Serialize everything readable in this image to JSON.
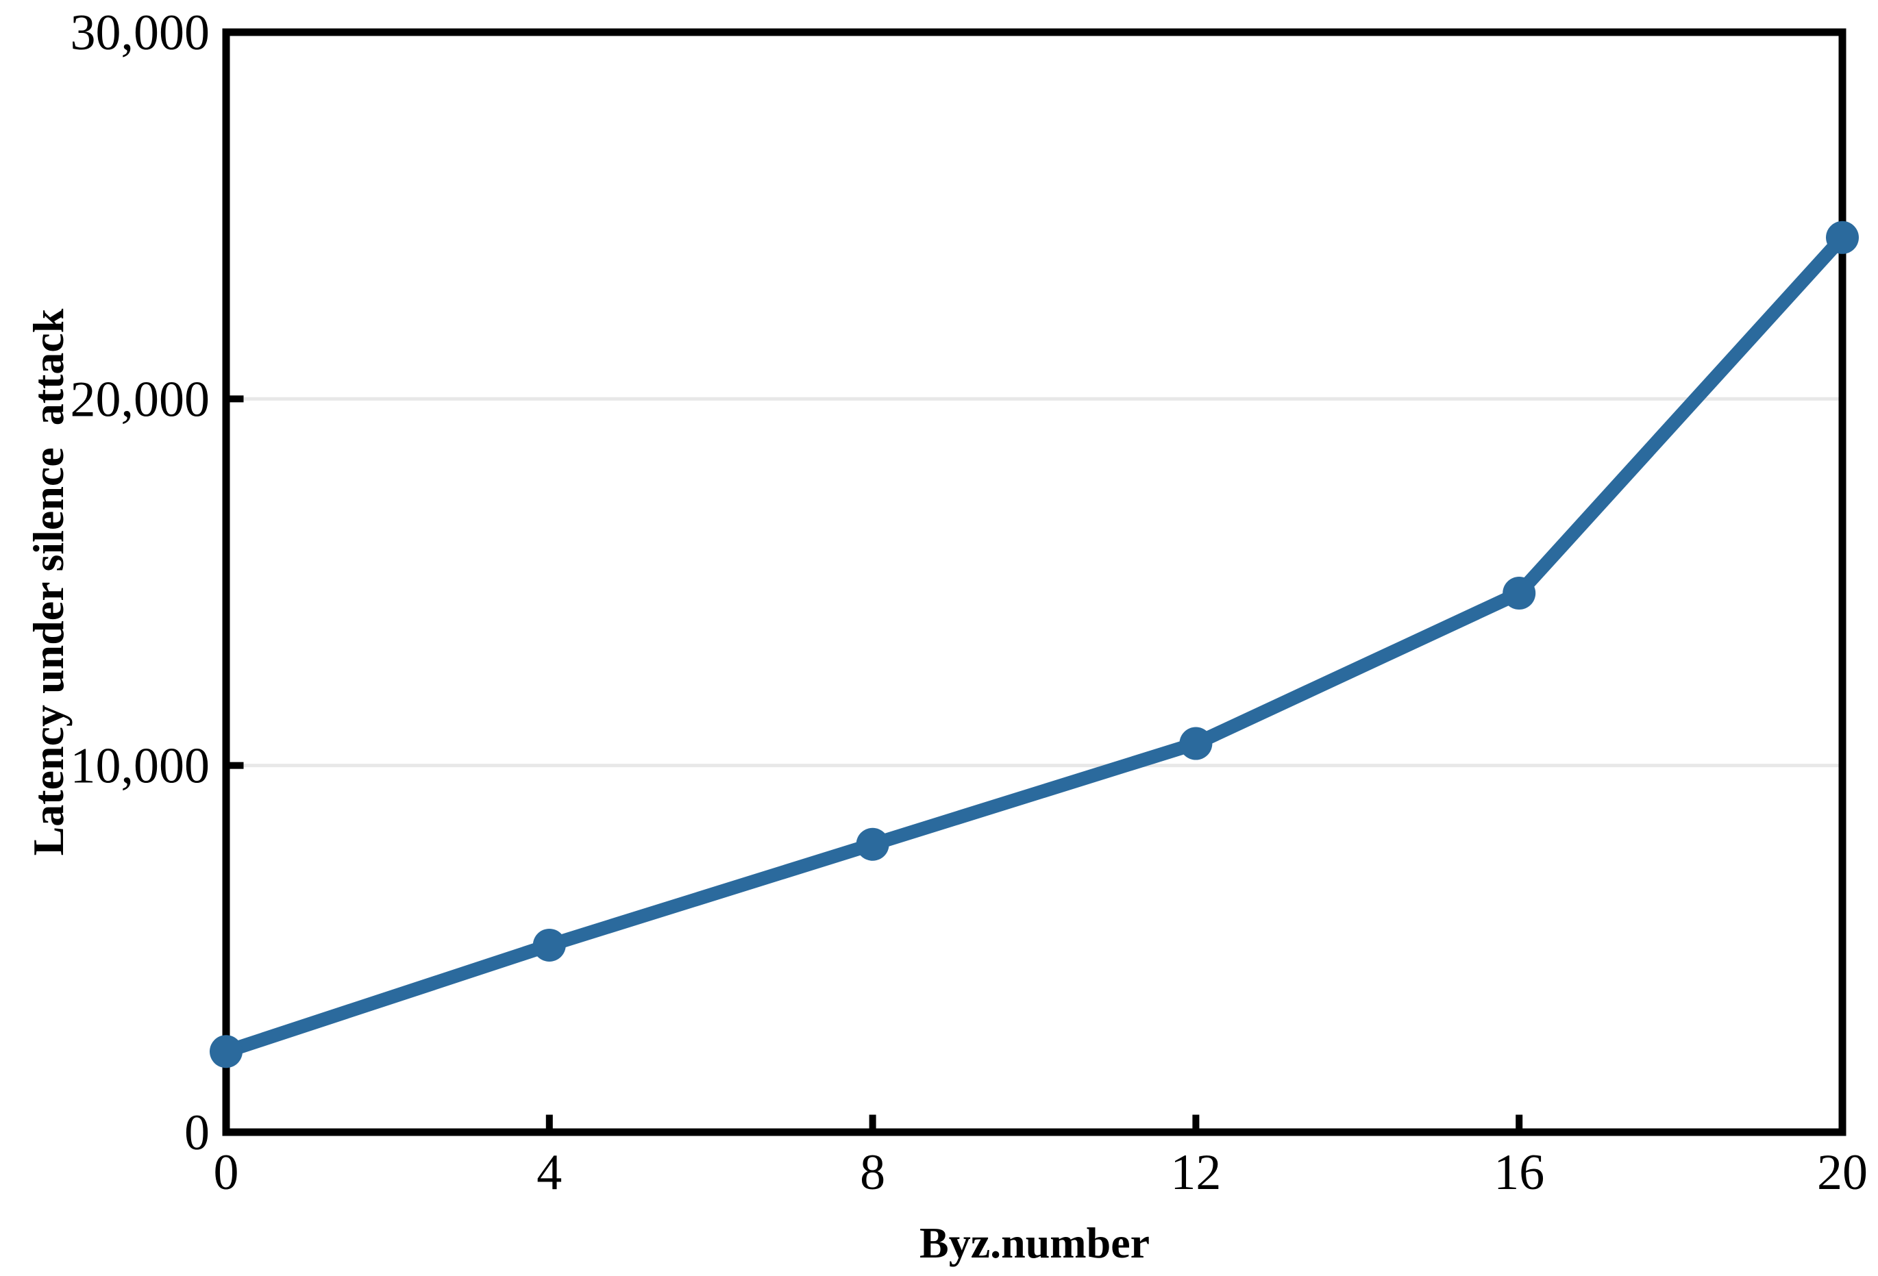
{
  "figure": {
    "background": "#ffffff"
  },
  "chart_data": {
    "type": "line",
    "xlabel": "Byz.number",
    "ylabel": "Latency under silence  attack",
    "x": [
      0,
      4,
      8,
      12,
      16,
      20
    ],
    "values": [
      2200,
      5100,
      7850,
      10600,
      14700,
      24400
    ],
    "series_count": 1,
    "xlim": [
      0,
      20
    ],
    "ylim": [
      0,
      30000
    ],
    "xtick_values": [
      0,
      4,
      8,
      12,
      16,
      20
    ],
    "xtick_labels": [
      "0",
      "4",
      "8",
      "12",
      "16",
      "20"
    ],
    "ytick_values": [
      0,
      10000,
      20000,
      30000
    ],
    "ytick_labels": [
      "0",
      "10,000",
      "20,000",
      "30,000"
    ],
    "grid": "horizontal",
    "grid_values": [
      10000,
      20000
    ],
    "legend": "none",
    "marker": "circle",
    "line_color": "#2b6a9d",
    "grid_color": "#e8e8e8",
    "axis_color": "#000000",
    "text_color": "#000000"
  }
}
